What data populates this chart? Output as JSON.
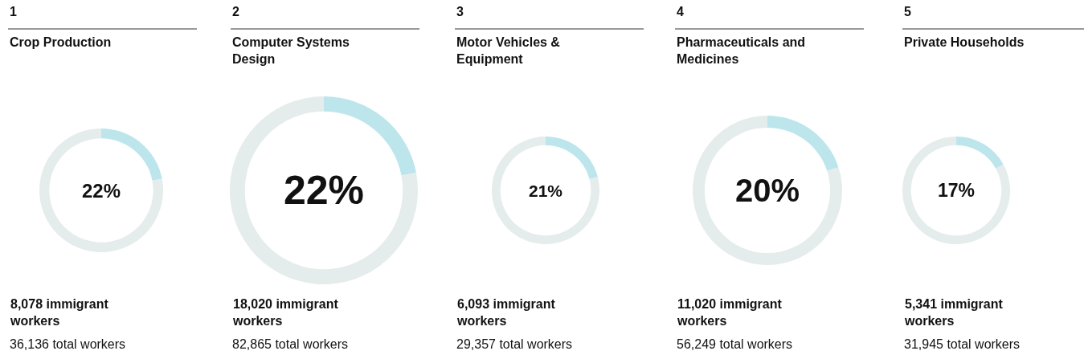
{
  "chart_data": [
    {
      "type": "donut",
      "title": "Crop Production",
      "categories": [
        null,
        null
      ],
      "values": [
        22,
        78
      ],
      "colors": [
        "#bde5ec",
        "#e5ecec"
      ],
      "legend": false,
      "annotations": [
        "1",
        "22%",
        "8,078 immigrant workers",
        "36,136 total workers"
      ]
    },
    {
      "type": "donut",
      "title": "Computer Systems Design",
      "categories": [
        null,
        null
      ],
      "values": [
        22,
        78
      ],
      "colors": [
        "#bde5ec",
        "#e5ecec"
      ],
      "legend": false,
      "annotations": [
        "2",
        "22%",
        "18,020 immigrant workers",
        "82,865 total workers"
      ]
    },
    {
      "type": "donut",
      "title": "Motor Vehicles & Equipment",
      "categories": [
        null,
        null
      ],
      "values": [
        21,
        79
      ],
      "colors": [
        "#bde5ec",
        "#e5ecec"
      ],
      "legend": false,
      "annotations": [
        "3",
        "21%",
        "6,093 immigrant workers",
        "29,357 total workers"
      ]
    },
    {
      "type": "donut",
      "title": "Pharmaceuticals and Medicines",
      "categories": [
        null,
        null
      ],
      "values": [
        20,
        80
      ],
      "colors": [
        "#bde5ec",
        "#e5ecec"
      ],
      "legend": false,
      "annotations": [
        "4",
        "20%",
        "11,020 immigrant workers",
        "56,249 total workers"
      ]
    },
    {
      "type": "donut",
      "title": "Private Households",
      "categories": [
        null,
        null
      ],
      "values": [
        17,
        83
      ],
      "colors": [
        "#bde5ec",
        "#e5ecec"
      ],
      "legend": false,
      "annotations": [
        "5",
        "17%",
        "5,341 immigrant workers",
        "31,945 total workers"
      ]
    }
  ]
}
